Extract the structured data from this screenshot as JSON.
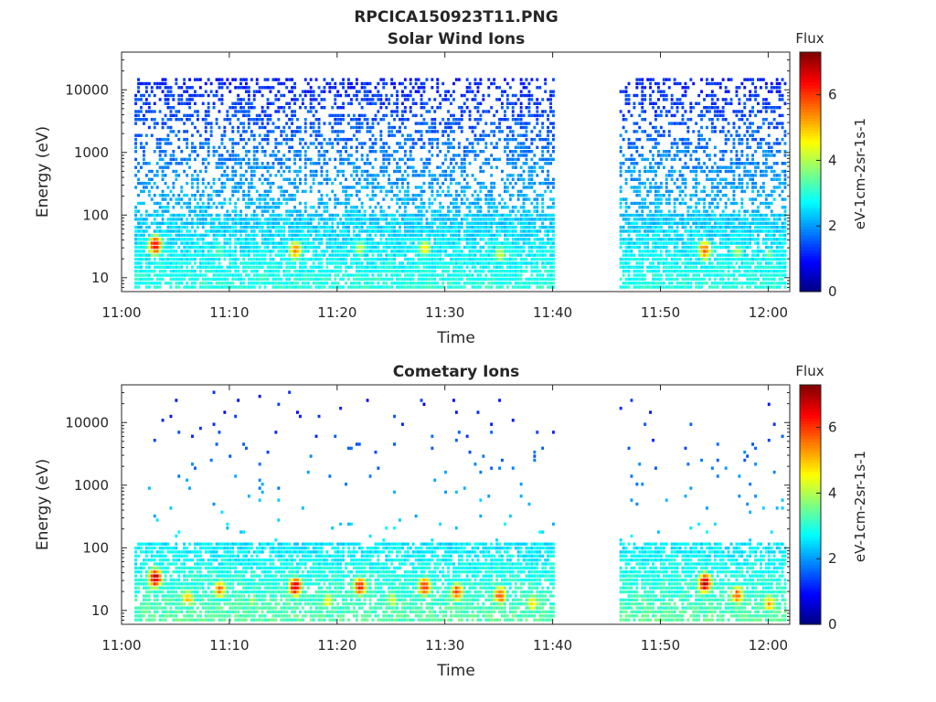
{
  "figure": {
    "title": "RPCICA150923T11.PNG"
  },
  "colormap": [
    "#00007f",
    "#0000ff",
    "#0080ff",
    "#00ffff",
    "#80ff80",
    "#ffff00",
    "#ff8000",
    "#ff0000",
    "#7f0000"
  ],
  "chart_data": [
    {
      "type": "heatmap",
      "title": "Solar Wind Ions",
      "xlabel": "Time",
      "ylabel": "Energy (eV)",
      "xlim": [
        "11:00",
        "12:02"
      ],
      "ylim": [
        6,
        40000
      ],
      "y_scale": "log",
      "x_ticks": [
        "11:00",
        "11:10",
        "11:20",
        "11:30",
        "11:40",
        "11:50",
        "12:00"
      ],
      "y_ticks": [
        "10",
        "100",
        "1000",
        "10000"
      ],
      "y_tick_values": [
        10,
        100,
        1000,
        10000
      ],
      "data_gaps": [
        [
          "11:40",
          "11:46"
        ]
      ],
      "colorbar": {
        "title": "Flux",
        "label": "eV-1cm-2sr-1s-1",
        "range": [
          0,
          7.3
        ],
        "ticks": [
          "0",
          "2",
          "4",
          "6"
        ],
        "tick_values": [
          0,
          2,
          4,
          6
        ]
      },
      "grid": false,
      "hotspots": [
        {
          "time": "11:03",
          "energy": 30,
          "flux": 6.6
        },
        {
          "time": "11:09",
          "energy": 25,
          "flux": 3.6
        },
        {
          "time": "11:16",
          "energy": 25,
          "flux": 5.5
        },
        {
          "time": "11:22",
          "energy": 27,
          "flux": 4.2
        },
        {
          "time": "11:28",
          "energy": 27,
          "flux": 4.6
        },
        {
          "time": "11:35",
          "energy": 22,
          "flux": 4.3
        },
        {
          "time": "11:54",
          "energy": 25,
          "flux": 5.8
        },
        {
          "time": "11:57",
          "energy": 23,
          "flux": 4.0
        },
        {
          "time": "12:00",
          "energy": 22,
          "flux": 3.5
        }
      ],
      "background": {
        "energy_max": 15000,
        "flux_low_energy": 3.0,
        "flux_high_energy": 1.1
      }
    },
    {
      "type": "heatmap",
      "title": "Cometary Ions",
      "xlabel": "Time",
      "ylabel": "Energy (eV)",
      "xlim": [
        "11:00",
        "12:02"
      ],
      "ylim": [
        6,
        40000
      ],
      "y_scale": "log",
      "x_ticks": [
        "11:00",
        "11:10",
        "11:20",
        "11:30",
        "11:40",
        "11:50",
        "12:00"
      ],
      "y_ticks": [
        "10",
        "100",
        "1000",
        "10000"
      ],
      "y_tick_values": [
        10,
        100,
        1000,
        10000
      ],
      "data_gaps": [
        [
          "11:40",
          "11:46"
        ]
      ],
      "colorbar": {
        "title": "Flux",
        "label": "eV-1cm-2sr-1s-1",
        "range": [
          0,
          7.3
        ],
        "ticks": [
          "0",
          "2",
          "4",
          "6"
        ],
        "tick_values": [
          0,
          2,
          4,
          6
        ]
      },
      "grid": false,
      "hotspots": [
        {
          "time": "11:03",
          "energy": 30,
          "flux": 7.0
        },
        {
          "time": "11:06",
          "energy": 14,
          "flux": 5.0
        },
        {
          "time": "11:09",
          "energy": 20,
          "flux": 5.5
        },
        {
          "time": "11:12",
          "energy": 13,
          "flux": 4.0
        },
        {
          "time": "11:16",
          "energy": 22,
          "flux": 6.8
        },
        {
          "time": "11:19",
          "energy": 13,
          "flux": 4.6
        },
        {
          "time": "11:22",
          "energy": 22,
          "flux": 6.3
        },
        {
          "time": "11:25",
          "energy": 13,
          "flux": 4.2
        },
        {
          "time": "11:28",
          "energy": 22,
          "flux": 6.2
        },
        {
          "time": "11:31",
          "energy": 18,
          "flux": 6.0
        },
        {
          "time": "11:35",
          "energy": 16,
          "flux": 6.0
        },
        {
          "time": "11:38",
          "energy": 12,
          "flux": 4.8
        },
        {
          "time": "11:54",
          "energy": 25,
          "flux": 7.1
        },
        {
          "time": "11:57",
          "energy": 16,
          "flux": 5.8
        },
        {
          "time": "12:00",
          "energy": 12,
          "flux": 5.2
        }
      ],
      "background": {
        "energy_max": 30000,
        "flux_low_energy": 3.4,
        "flux_high_energy": 1.0
      }
    }
  ]
}
